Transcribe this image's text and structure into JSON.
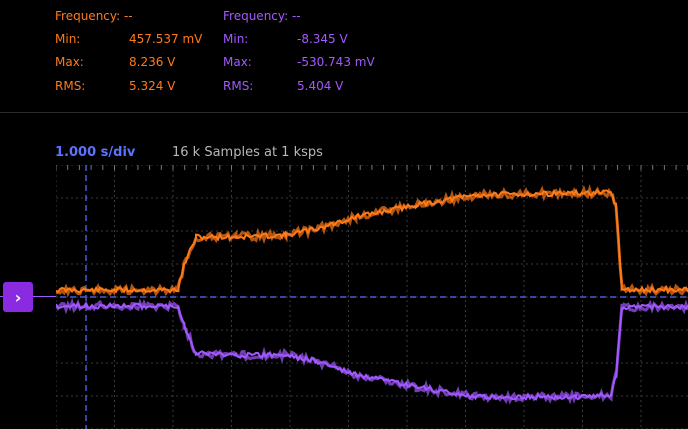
{
  "channel1": {
    "color": "#ff7a18",
    "frequency_label": "Frequency: --",
    "min_label": "Min:",
    "min_value": "457.537 mV",
    "max_label": "Max:",
    "max_value": "8.236 V",
    "rms_label": "RMS:",
    "rms_value": "5.324 V"
  },
  "channel2": {
    "color": "#a259ff",
    "frequency_label": "Frequency: --",
    "min_label": "Min:",
    "min_value": "-8.345 V",
    "max_label": "Max:",
    "max_value": "-530.743 mV",
    "rms_label": "RMS:",
    "rms_value": "5.404 V"
  },
  "timebase": {
    "label": "1.000 s/div",
    "samples": "16 k Samples at 1 ksps"
  },
  "marker": {
    "icon": "chevron-right-icon",
    "glyph": "›"
  }
}
